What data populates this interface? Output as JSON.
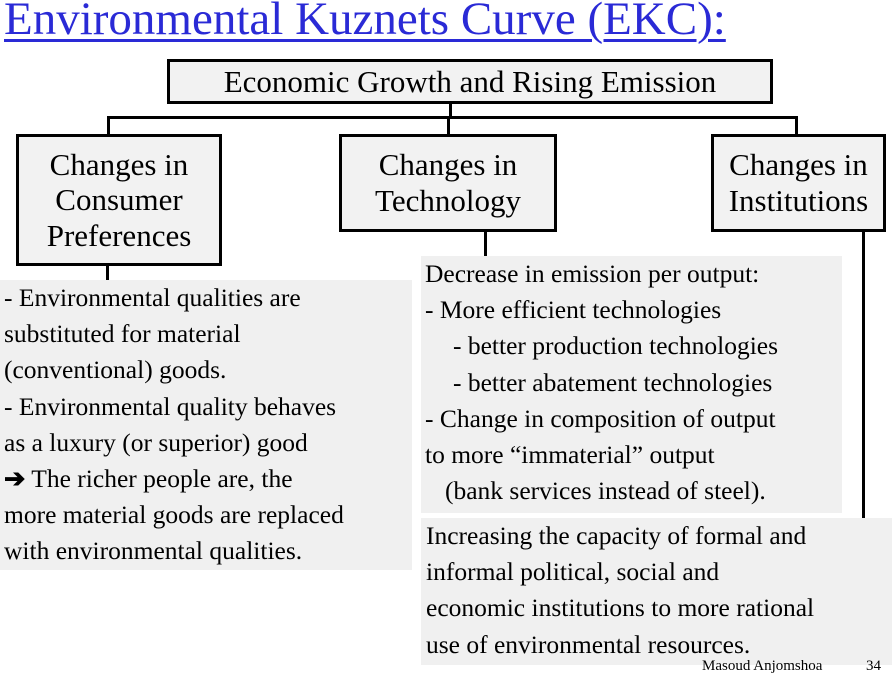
{
  "title": "Environmental Kuznets Curve (EKC):",
  "root_box": "Economic Growth and Rising Emission",
  "branches": [
    {
      "label_lines": [
        "Changes in",
        "Consumer",
        "Preferences"
      ]
    },
    {
      "label_lines": [
        "Changes in",
        "Technology"
      ]
    },
    {
      "label_lines": [
        "Changes in",
        "Institutions"
      ]
    }
  ],
  "consumer_panel": {
    "line1": "- Environmental qualities are",
    "line2": "substituted for material",
    "line3": "(conventional) goods.",
    "line4": "- Environmental quality behaves",
    "line5": "as a luxury (or superior) good",
    "line6_arrow": "➔",
    "line6": " The richer people are, the",
    "line7": "more material goods are replaced",
    "line8": "with environmental qualities."
  },
  "technology_panel": {
    "line1": "Decrease in emission per output:",
    "line2": "- More efficient technologies",
    "line3": "- better production technologies",
    "line4": "- better abatement technologies",
    "line5": "- Change in composition of output",
    "line6": "to more “immaterial” output",
    "line7": "(bank services instead of steel)."
  },
  "institutions_panel": {
    "line1": "Increasing the capacity of formal and",
    "line2": "informal political, social and",
    "line3": "economic institutions to more rational",
    "line4": "use of environmental resources."
  },
  "footer": {
    "author": "Masoud Anjomshoa",
    "page": "34"
  }
}
